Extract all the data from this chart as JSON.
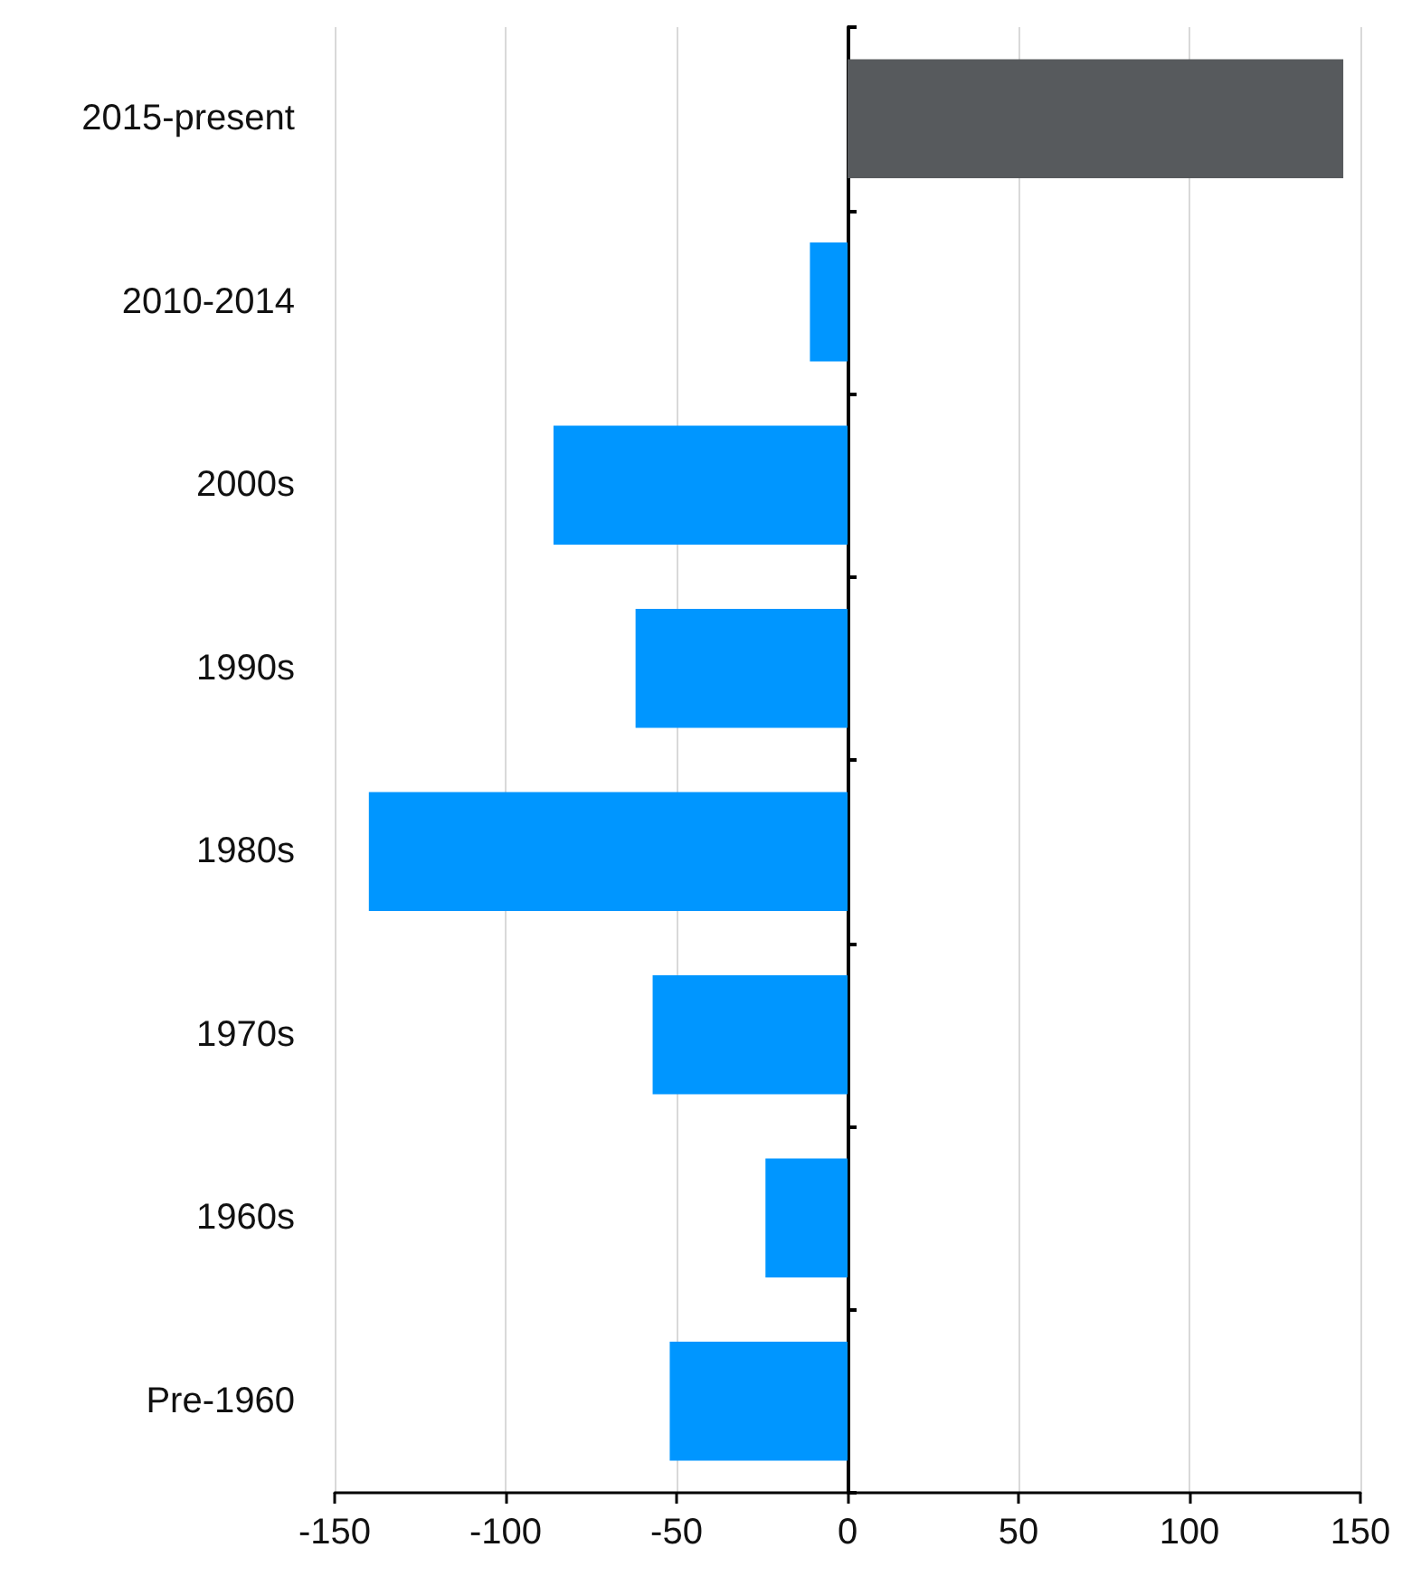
{
  "chart_data": {
    "type": "bar",
    "orientation": "horizontal",
    "categories": [
      "2015-present",
      "2010-2014",
      "2000s",
      "1990s",
      "1980s",
      "1970s",
      "1960s",
      "Pre-1960"
    ],
    "values": [
      145,
      -11,
      -86,
      -62,
      -140,
      -57,
      -24,
      -52
    ],
    "colors": [
      "#575a5d",
      "#0096ff",
      "#0096ff",
      "#0096ff",
      "#0096ff",
      "#0096ff",
      "#0096ff",
      "#0096ff"
    ],
    "xlim": [
      -150,
      150
    ],
    "xticks": [
      -150,
      -100,
      -50,
      0,
      50,
      100,
      150
    ],
    "grid": "x"
  }
}
